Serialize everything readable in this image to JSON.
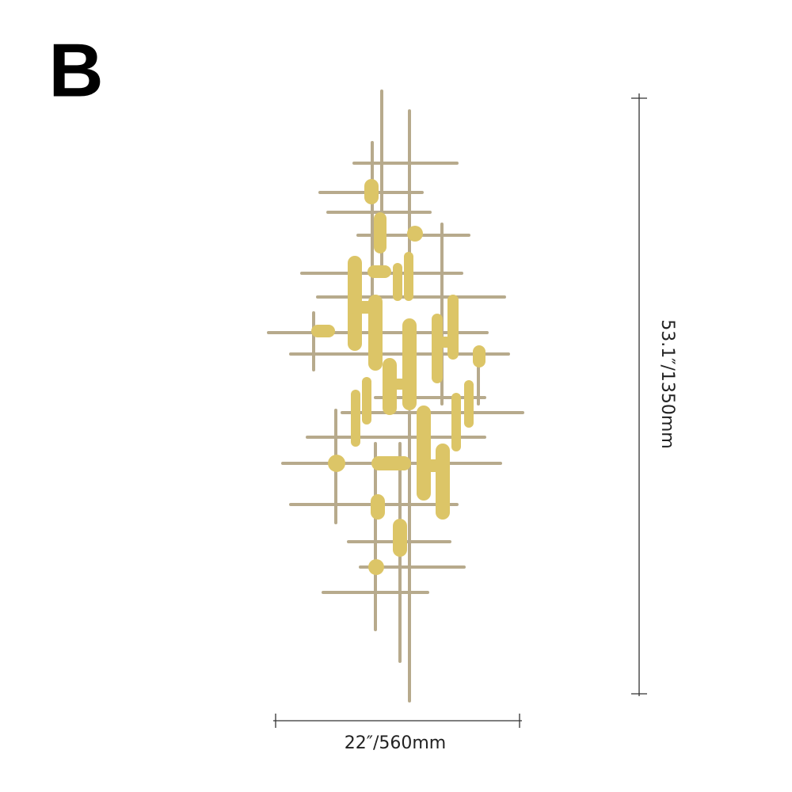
{
  "label": "B",
  "dimensions": {
    "height": "53.1″/1350mm",
    "width": "22″/560mm"
  }
}
